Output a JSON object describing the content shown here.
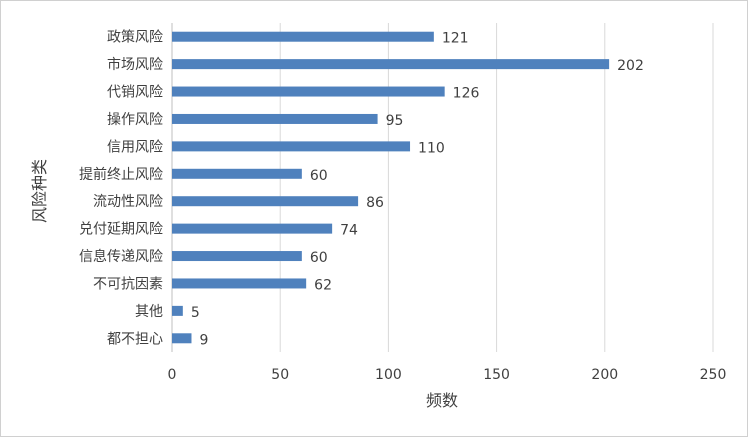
{
  "chart_data": {
    "type": "bar",
    "orientation": "horizontal",
    "categories": [
      "政策风险",
      "市场风险",
      "代销风险",
      "操作风险",
      "信用风险",
      "提前终止风险",
      "流动性风险",
      "兑付延期风险",
      "信息传递风险",
      "不可抗因素",
      "其他",
      "都不担心"
    ],
    "values": [
      121,
      202,
      126,
      95,
      110,
      60,
      86,
      74,
      60,
      62,
      5,
      9
    ],
    "title": "",
    "xlabel": "频数",
    "ylabel": "风险种类",
    "xlim": [
      0,
      250
    ],
    "xticks": [
      0,
      50,
      100,
      150,
      200,
      250
    ],
    "grid": "vertical",
    "legend": "none",
    "data_labels": true,
    "bar_color": "#4f81bd",
    "grid_color": "#d9d9d9"
  }
}
